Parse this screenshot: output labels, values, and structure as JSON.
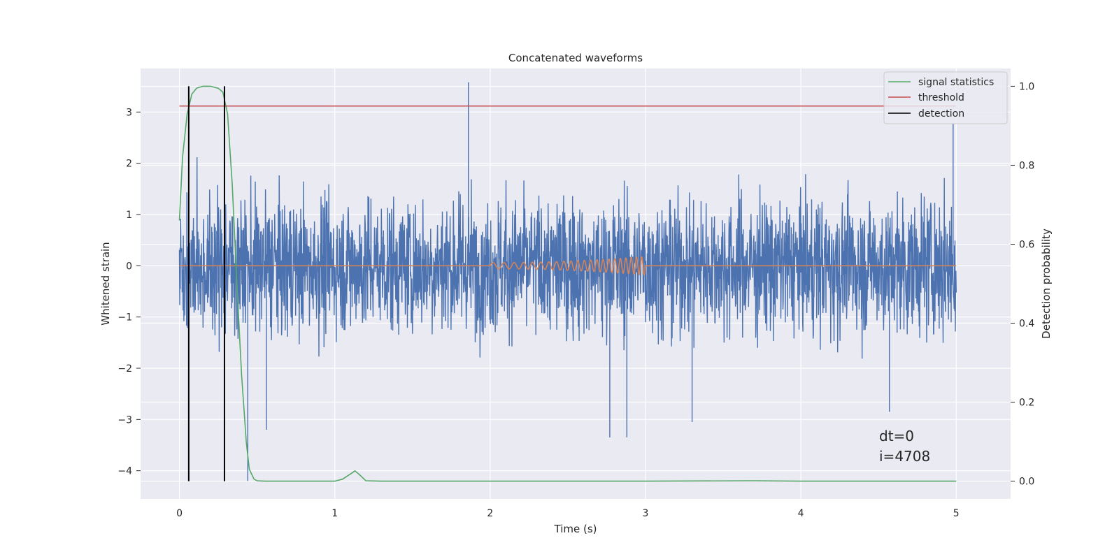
{
  "chart_data": {
    "type": "line",
    "title": "Concatenated waveforms",
    "xlabel": "Time (s)",
    "ylabel": "Whitened strain",
    "y2label": "Detection probability",
    "xlim": [
      -0.25,
      5.35
    ],
    "ylim": [
      -4.55,
      3.85
    ],
    "y2lim": [
      -0.045,
      1.045
    ],
    "xticks": [
      0,
      1,
      2,
      3,
      4,
      5
    ],
    "yticks": [
      -4,
      -3,
      -2,
      -1,
      0,
      1,
      2,
      3
    ],
    "y2ticks": [
      0.0,
      0.2,
      0.4,
      0.6,
      0.8,
      1.0
    ],
    "xtick_labels": [
      "0",
      "1",
      "2",
      "3",
      "4",
      "5"
    ],
    "ytick_labels": [
      "−4",
      "−3",
      "−2",
      "−1",
      "0",
      "1",
      "2",
      "3"
    ],
    "y2tick_labels": [
      "0.0",
      "0.2",
      "0.4",
      "0.6",
      "0.8",
      "1.0"
    ],
    "grid": true,
    "legend_position": "top-right",
    "legend": [
      {
        "label": "signal statistics",
        "color": "#55a868"
      },
      {
        "label": "threshold",
        "color": "#c44e52"
      },
      {
        "label": "detection",
        "color": "#000000"
      }
    ],
    "series": [
      {
        "name": "whitened strain noise",
        "axis": "left",
        "color": "#4c72b0",
        "x_range": [
          0,
          5
        ],
        "envelope": {
          "typical_abs": 1.5,
          "max": 3.58,
          "min": -4.2
        },
        "peaks": [
          {
            "x": 1.86,
            "y": 3.58
          },
          {
            "x": 0.44,
            "y": -4.2
          },
          {
            "x": 0.56,
            "y": -3.2
          },
          {
            "x": 2.77,
            "y": -3.35
          },
          {
            "x": 2.88,
            "y": -3.35
          },
          {
            "x": 3.3,
            "y": -3.05
          },
          {
            "x": 4.57,
            "y": -2.85
          },
          {
            "x": 4.98,
            "y": 2.77
          }
        ]
      },
      {
        "name": "injected waveform",
        "axis": "left",
        "color": "#dd8452",
        "x_range": [
          0,
          5
        ],
        "chirp": {
          "start": 2.0,
          "end": 3.0,
          "amp_start": 0.06,
          "amp_end": 0.18,
          "cycles": 22
        }
      },
      {
        "name": "signal statistics",
        "axis": "right",
        "color": "#55a868",
        "x": [
          0.0,
          0.02,
          0.05,
          0.08,
          0.11,
          0.15,
          0.2,
          0.25,
          0.28,
          0.31,
          0.34,
          0.37,
          0.4,
          0.43,
          0.45,
          0.48,
          0.5,
          0.55,
          1.0,
          1.05,
          1.1,
          1.13,
          1.16,
          1.2,
          1.3,
          3.0,
          3.7,
          4.0,
          5.0
        ],
        "y": [
          0.66,
          0.82,
          0.93,
          0.98,
          0.995,
          1.0,
          1.0,
          0.995,
          0.985,
          0.93,
          0.75,
          0.5,
          0.27,
          0.1,
          0.03,
          0.005,
          0.001,
          0.0,
          0.0,
          0.005,
          0.018,
          0.026,
          0.016,
          0.001,
          0.0,
          0.0,
          0.001,
          0.0,
          0.0
        ]
      },
      {
        "name": "threshold",
        "axis": "right",
        "color": "#c44e52",
        "x": [
          0,
          5
        ],
        "y": [
          0.95,
          0.95
        ]
      },
      {
        "name": "detection",
        "axis": "right",
        "color": "#000000",
        "x": [
          0.06,
          0.29
        ],
        "y": [
          0,
          1
        ]
      }
    ],
    "annotations": {
      "dt": "dt=0",
      "i": "i=4708"
    }
  }
}
